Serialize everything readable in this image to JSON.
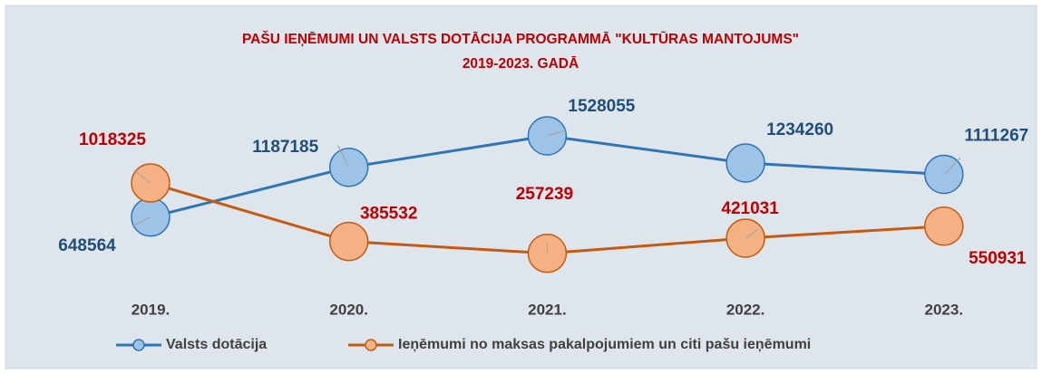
{
  "chart_data": {
    "type": "line",
    "title": "PAŠU IEŅĒMUMI UN VALSTS DOTĀCIJA PROGRAMMĀ \"KULTŪRAS MANTOJUMS\"",
    "subtitle": "2019-2023. GADĀ",
    "categories": [
      "2019.",
      "2020.",
      "2021.",
      "2022.",
      "2023."
    ],
    "series": [
      {
        "name": "Valsts dotācija",
        "color": "#2e75b6",
        "values": [
          648564,
          1187185,
          1528055,
          1234260,
          1111267
        ]
      },
      {
        "name": "Ieņēmumi no maksas pakalpojumiem un citi pašu ieņēmumi",
        "color": "#c55a11",
        "values": [
          1018325,
          385532,
          257239,
          421031,
          550931
        ]
      }
    ],
    "legend": "bottom"
  }
}
